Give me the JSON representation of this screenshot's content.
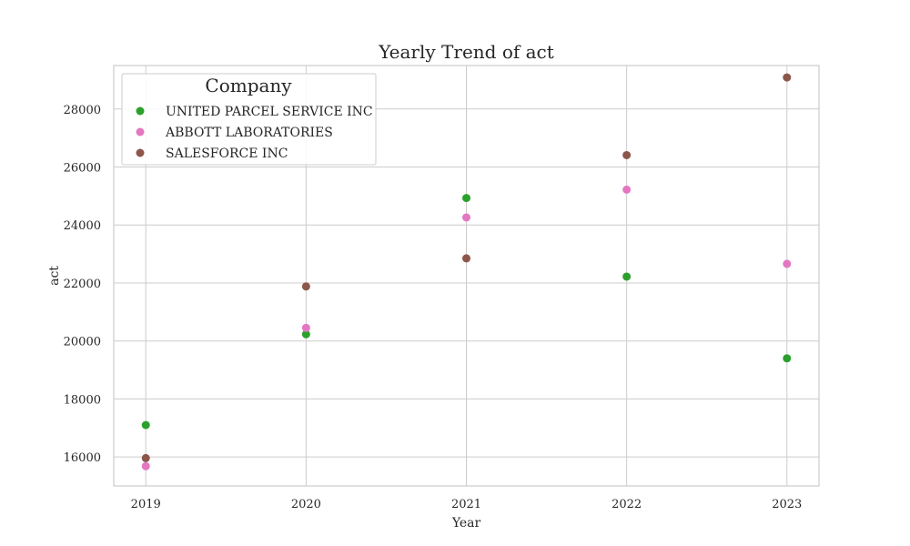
{
  "chart_data": {
    "type": "scatter",
    "title": "Yearly Trend of act",
    "xlabel": "Year",
    "ylabel": "act",
    "x": [
      2019,
      2020,
      2021,
      2022,
      2023
    ],
    "xticks": [
      "2019",
      "2020",
      "2021",
      "2022",
      "2023"
    ],
    "xlim": [
      2018.8,
      2023.2
    ],
    "ylim": [
      15000,
      29500
    ],
    "yticks": [
      16000,
      18000,
      20000,
      22000,
      24000,
      26000,
      28000
    ],
    "ytick_labels": [
      "16000",
      "18000",
      "20000",
      "22000",
      "24000",
      "26000",
      "28000"
    ],
    "grid": true,
    "legend": {
      "title": "Company",
      "placement": "top-left"
    },
    "series": [
      {
        "name": "UNITED PARCEL SERVICE INC",
        "color": "#2ca02c",
        "values": [
          17100,
          20230,
          24930,
          22220,
          19400
        ]
      },
      {
        "name": "ABBOTT LABORATORIES",
        "color": "#e377c2",
        "values": [
          15680,
          20450,
          24260,
          25220,
          22660
        ]
      },
      {
        "name": "SALESFORCE INC",
        "color": "#8c564b",
        "values": [
          15960,
          21880,
          22850,
          26410,
          29090
        ]
      }
    ]
  }
}
